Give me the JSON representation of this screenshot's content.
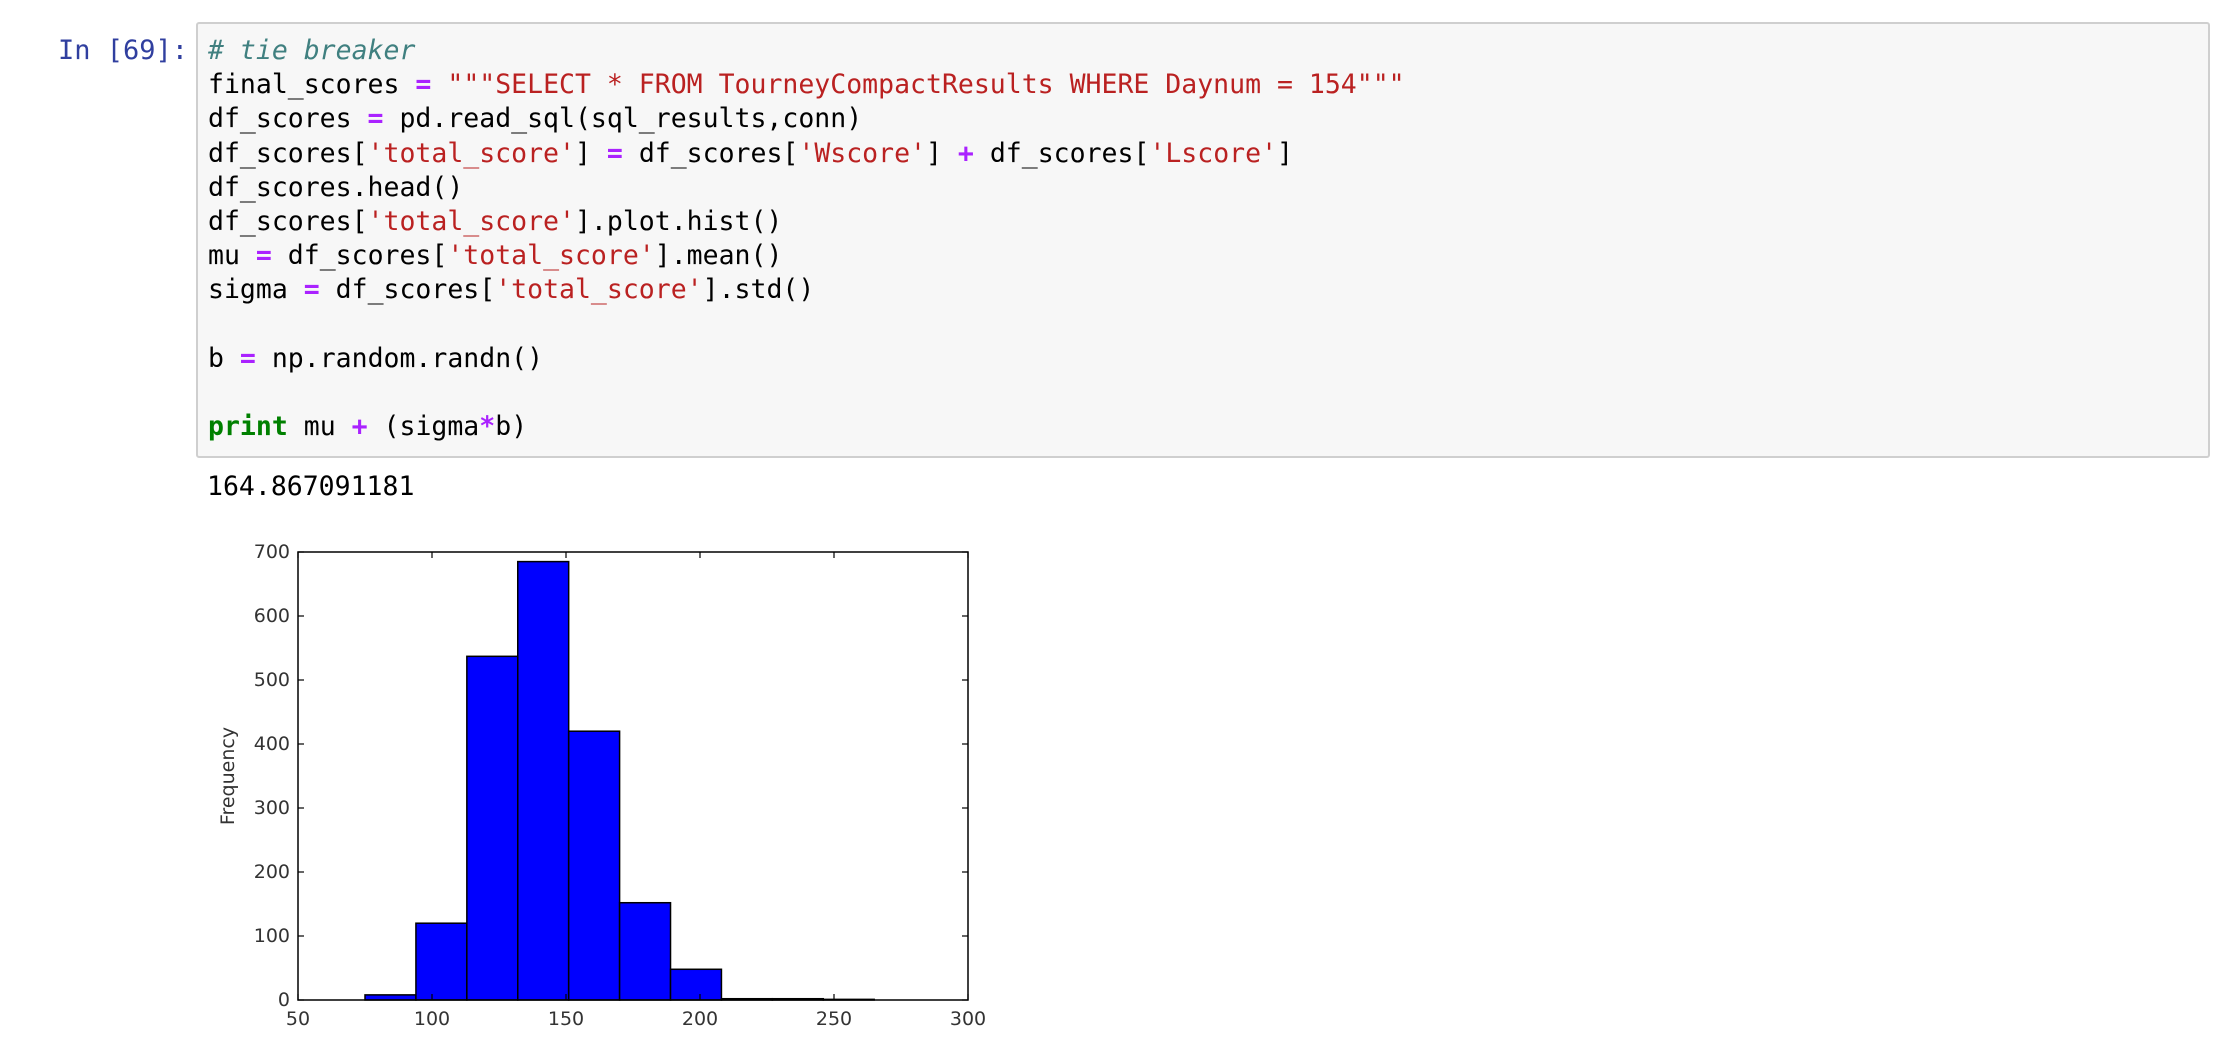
{
  "cell": {
    "prompt": "In [69]:",
    "code_lines": [
      [
        {
          "t": "cm",
          "v": "# tie breaker"
        }
      ],
      [
        {
          "t": "n",
          "v": "final_scores "
        },
        {
          "t": "op",
          "v": "="
        },
        {
          "t": "n",
          "v": " "
        },
        {
          "t": "st",
          "v": "\"\"\"SELECT * FROM TourneyCompactResults WHERE Daynum = 154\"\"\""
        }
      ],
      [
        {
          "t": "n",
          "v": "df_scores "
        },
        {
          "t": "op",
          "v": "="
        },
        {
          "t": "n",
          "v": " pd.read_sql(sql_results,conn)"
        }
      ],
      [
        {
          "t": "n",
          "v": "df_scores["
        },
        {
          "t": "st",
          "v": "'total_score'"
        },
        {
          "t": "n",
          "v": "] "
        },
        {
          "t": "op",
          "v": "="
        },
        {
          "t": "n",
          "v": " df_scores["
        },
        {
          "t": "st",
          "v": "'Wscore'"
        },
        {
          "t": "n",
          "v": "] "
        },
        {
          "t": "op",
          "v": "+"
        },
        {
          "t": "n",
          "v": " df_scores["
        },
        {
          "t": "st",
          "v": "'Lscore'"
        },
        {
          "t": "n",
          "v": "]"
        }
      ],
      [
        {
          "t": "n",
          "v": "df_scores.head()"
        }
      ],
      [
        {
          "t": "n",
          "v": "df_scores["
        },
        {
          "t": "st",
          "v": "'total_score'"
        },
        {
          "t": "n",
          "v": "].plot.hist()"
        }
      ],
      [
        {
          "t": "n",
          "v": "mu "
        },
        {
          "t": "op",
          "v": "="
        },
        {
          "t": "n",
          "v": " df_scores["
        },
        {
          "t": "st",
          "v": "'total_score'"
        },
        {
          "t": "n",
          "v": "].mean()"
        }
      ],
      [
        {
          "t": "n",
          "v": "sigma "
        },
        {
          "t": "op",
          "v": "="
        },
        {
          "t": "n",
          "v": " df_scores["
        },
        {
          "t": "st",
          "v": "'total_score'"
        },
        {
          "t": "n",
          "v": "].std()"
        }
      ],
      [],
      [
        {
          "t": "n",
          "v": "b "
        },
        {
          "t": "op",
          "v": "="
        },
        {
          "t": "n",
          "v": " np.random.randn()"
        }
      ],
      [],
      [
        {
          "t": "kw",
          "v": "print"
        },
        {
          "t": "n",
          "v": " mu "
        },
        {
          "t": "op",
          "v": "+"
        },
        {
          "t": "n",
          "v": " (sigma"
        },
        {
          "t": "op",
          "v": "*"
        },
        {
          "t": "n",
          "v": "b)"
        }
      ]
    ],
    "stdout": "164.867091181"
  },
  "chart_data": {
    "type": "bar",
    "ylabel": "Frequency",
    "xlim": [
      50,
      300
    ],
    "ylim": [
      0,
      700
    ],
    "xticks": [
      50,
      100,
      150,
      200,
      250,
      300
    ],
    "yticks": [
      0,
      100,
      200,
      300,
      400,
      500,
      600,
      700
    ],
    "bin_edges": [
      75,
      94,
      113,
      132,
      151,
      170,
      189,
      208,
      227,
      246,
      265
    ],
    "values": [
      8,
      120,
      537,
      685,
      420,
      152,
      48,
      2,
      2,
      1
    ],
    "color": "#0000ff"
  }
}
